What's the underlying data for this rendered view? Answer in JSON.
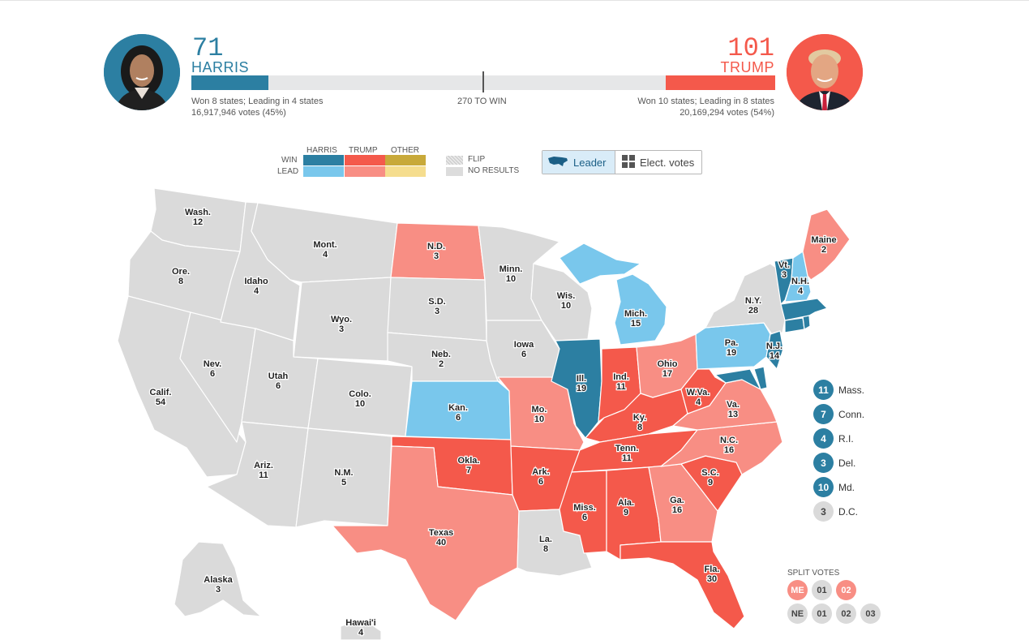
{
  "harris": {
    "votes": "71",
    "name": "HARRIS",
    "summary": "Won 8 states; Leading in 4 states",
    "popular": "16,917,946 votes (45%)",
    "share": 0.132
  },
  "trump": {
    "votes": "101",
    "name": "TRUMP",
    "summary": "Won 10 states; Leading in 8 states",
    "popular": "20,169,294 votes (54%)",
    "share": 0.188
  },
  "threshold": "270 TO WIN",
  "colors": {
    "harris_win": "#2c7fa2",
    "harris_lead": "#79c7ec",
    "trump_win": "#f4594b",
    "trump_lead": "#f88e84",
    "other_win": "#c8a93a",
    "other_lead": "#f5dd8e",
    "no_result": "#dadada"
  },
  "legend": {
    "win": "WIN",
    "lead": "LEAD",
    "harris": "HARRIS",
    "trump": "TRUMP",
    "other": "OTHER",
    "flip": "FLIP",
    "no_results": "NO RESULTS"
  },
  "toggle": {
    "leader": "Leader",
    "elect": "Elect. votes"
  },
  "states": [
    {
      "id": "wa",
      "name": "Wash.",
      "ev": "12"
    },
    {
      "id": "or",
      "name": "Ore.",
      "ev": "8"
    },
    {
      "id": "ca",
      "name": "Calif.",
      "ev": "54"
    },
    {
      "id": "nv",
      "name": "Nev.",
      "ev": "6"
    },
    {
      "id": "id",
      "name": "Idaho",
      "ev": "4"
    },
    {
      "id": "mt",
      "name": "Mont.",
      "ev": "4"
    },
    {
      "id": "wy",
      "name": "Wyo.",
      "ev": "3"
    },
    {
      "id": "ut",
      "name": "Utah",
      "ev": "6"
    },
    {
      "id": "az",
      "name": "Ariz.",
      "ev": "11"
    },
    {
      "id": "co",
      "name": "Colo.",
      "ev": "10"
    },
    {
      "id": "nm",
      "name": "N.M.",
      "ev": "5"
    },
    {
      "id": "nd",
      "name": "N.D.",
      "ev": "3"
    },
    {
      "id": "sd",
      "name": "S.D.",
      "ev": "3"
    },
    {
      "id": "ne",
      "name": "Neb.",
      "ev": "2"
    },
    {
      "id": "ks",
      "name": "Kan.",
      "ev": "6"
    },
    {
      "id": "ok",
      "name": "Okla.",
      "ev": "7"
    },
    {
      "id": "tx",
      "name": "Texas",
      "ev": "40"
    },
    {
      "id": "mn",
      "name": "Minn.",
      "ev": "10"
    },
    {
      "id": "ia",
      "name": "Iowa",
      "ev": "6"
    },
    {
      "id": "mo",
      "name": "Mo.",
      "ev": "10"
    },
    {
      "id": "ar",
      "name": "Ark.",
      "ev": "6"
    },
    {
      "id": "la",
      "name": "La.",
      "ev": "8"
    },
    {
      "id": "wi",
      "name": "Wis.",
      "ev": "10"
    },
    {
      "id": "il",
      "name": "Ill.",
      "ev": "19"
    },
    {
      "id": "mi",
      "name": "Mich.",
      "ev": "15"
    },
    {
      "id": "in",
      "name": "Ind.",
      "ev": "11"
    },
    {
      "id": "oh",
      "name": "Ohio",
      "ev": "17"
    },
    {
      "id": "ky",
      "name": "Ky.",
      "ev": "8"
    },
    {
      "id": "tn",
      "name": "Tenn.",
      "ev": "11"
    },
    {
      "id": "ms",
      "name": "Miss.",
      "ev": "6"
    },
    {
      "id": "al",
      "name": "Ala.",
      "ev": "9"
    },
    {
      "id": "ga",
      "name": "Ga.",
      "ev": "16"
    },
    {
      "id": "fl",
      "name": "Fla.",
      "ev": "30"
    },
    {
      "id": "sc",
      "name": "S.C.",
      "ev": "9"
    },
    {
      "id": "nc",
      "name": "N.C.",
      "ev": "16"
    },
    {
      "id": "va",
      "name": "Va.",
      "ev": "13"
    },
    {
      "id": "wv",
      "name": "W.Va.",
      "ev": "4"
    },
    {
      "id": "pa",
      "name": "Pa.",
      "ev": "19"
    },
    {
      "id": "ny",
      "name": "N.Y.",
      "ev": "28"
    },
    {
      "id": "nj",
      "name": "N.J.",
      "ev": "14"
    },
    {
      "id": "vt",
      "name": "Vt.",
      "ev": "3"
    },
    {
      "id": "nh",
      "name": "N.H.",
      "ev": "4"
    },
    {
      "id": "me",
      "name": "Maine",
      "ev": "2"
    },
    {
      "id": "ak",
      "name": "Alaska",
      "ev": "3"
    },
    {
      "id": "hi",
      "name": "Hawai'i",
      "ev": "4"
    }
  ],
  "small_states": [
    {
      "ev": "11",
      "name": "Mass.",
      "status": "harris_win"
    },
    {
      "ev": "7",
      "name": "Conn.",
      "status": "harris_win"
    },
    {
      "ev": "4",
      "name": "R.I.",
      "status": "harris_win"
    },
    {
      "ev": "3",
      "name": "Del.",
      "status": "harris_win"
    },
    {
      "ev": "10",
      "name": "Md.",
      "status": "harris_win"
    },
    {
      "ev": "3",
      "name": "D.C.",
      "status": "no_result"
    }
  ],
  "split_votes": {
    "title": "SPLIT VOTES",
    "me": [
      "ME",
      "01",
      "02"
    ],
    "ne": [
      "NE",
      "01",
      "02",
      "03"
    ]
  }
}
